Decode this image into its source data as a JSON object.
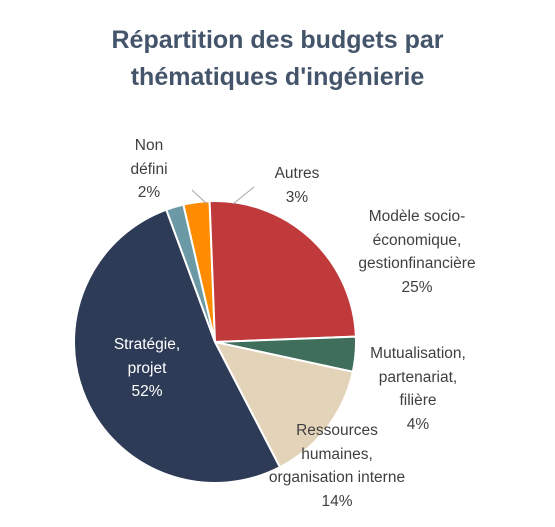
{
  "title_lines": [
    "Répartition des budgets par",
    "thématiques d'ingénierie"
  ],
  "chart_data": {
    "type": "pie",
    "title": "Répartition des budgets par thématiques d'ingénierie",
    "start_angle_deg": -13,
    "slices": [
      {
        "label": "Autres",
        "value": 3,
        "color": "#ff8c00",
        "label_lines": [
          "Autres",
          "3%"
        ]
      },
      {
        "label": "Modèle socio-économique, gestionfinancière",
        "value": 25,
        "color": "#c0393b",
        "label_lines": [
          "Modèle socio-",
          "économique,",
          "gestionfinancière",
          "25%"
        ]
      },
      {
        "label": "Mutualisation, partenariat, filière",
        "value": 4,
        "color": "#3f6e5a",
        "label_lines": [
          "Mutualisation,",
          "partenariat,",
          "filière",
          "4%"
        ]
      },
      {
        "label": "Ressources humaines, organisation interne",
        "value": 14,
        "color": "#e3d3b9",
        "label_lines": [
          "Ressources",
          "humaines,",
          "organisation interne",
          "14%"
        ]
      },
      {
        "label": "Stratégie, projet",
        "value": 52,
        "color": "#2e3b57",
        "label_lines": [
          "Stratégie,",
          "projet",
          "52%"
        ]
      },
      {
        "label": "Non défini",
        "value": 2,
        "color": "#6b9aa6",
        "label_lines": [
          "Non",
          "défini",
          "2%"
        ]
      }
    ]
  }
}
